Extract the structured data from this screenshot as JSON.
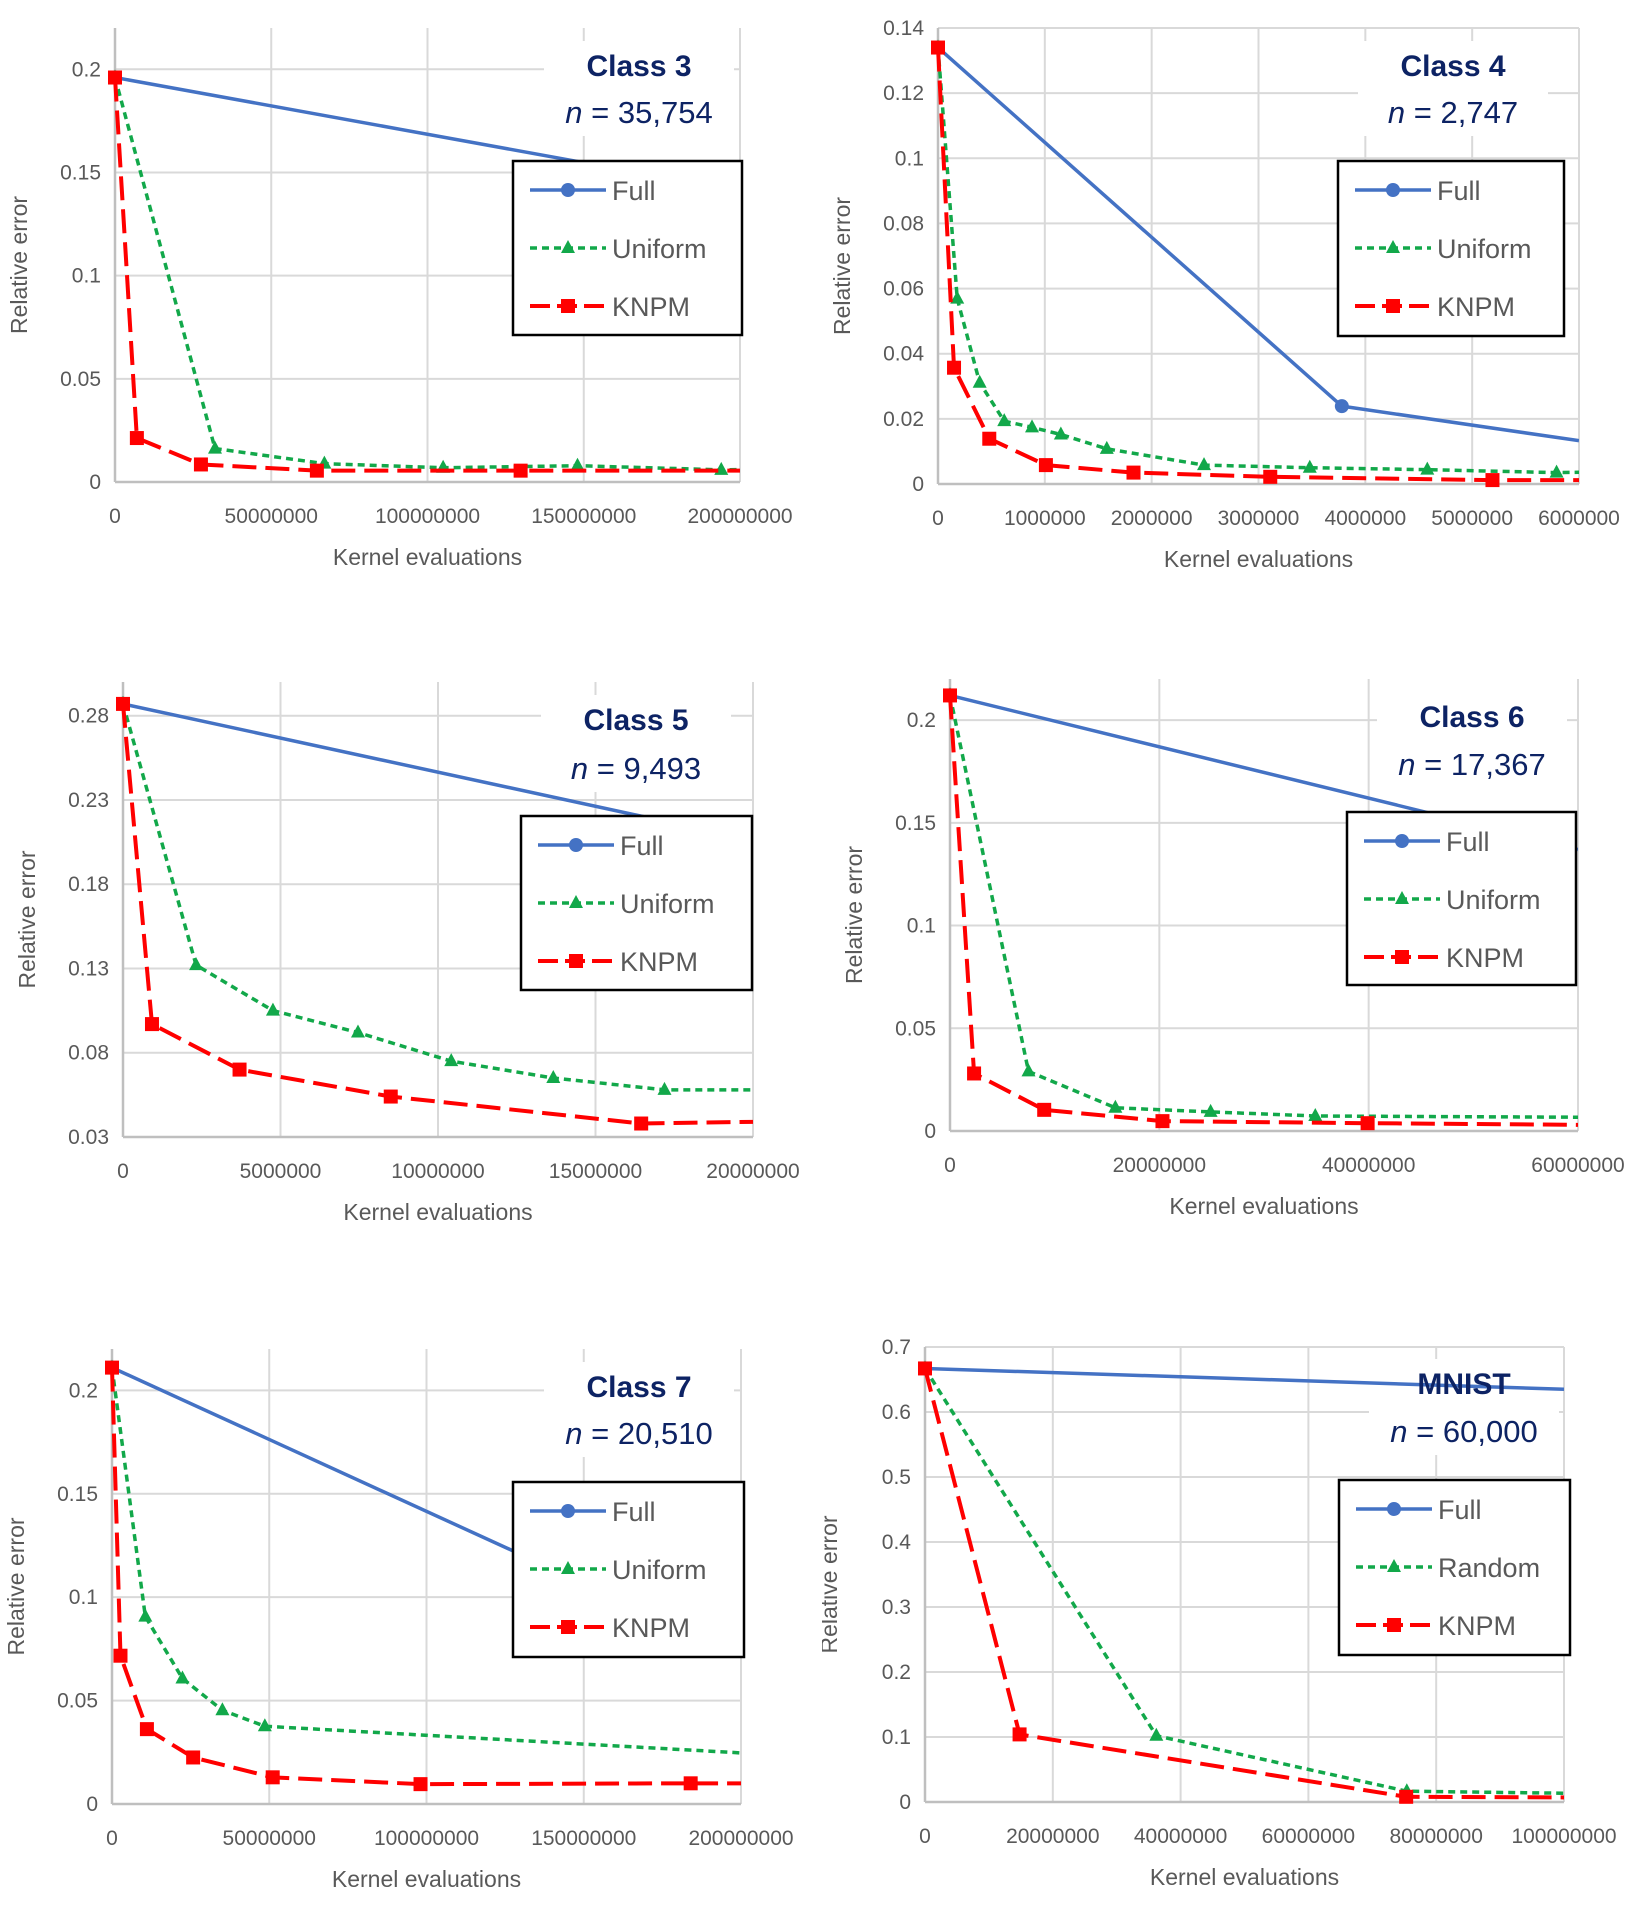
{
  "chart_data": [
    {
      "type": "line",
      "title": "Class 3",
      "annotation": "n = 35,754",
      "xlabel": "Kernel evaluations",
      "ylabel": "Relative error",
      "xlim": [
        0,
        200000000
      ],
      "ylim": [
        0,
        0.22
      ],
      "xticks": [
        {
          "v": 0,
          "label": "0"
        },
        {
          "v": 50000000,
          "label": "50000000"
        },
        {
          "v": 100000000,
          "label": "100000000"
        },
        {
          "v": 150000000,
          "label": "150000000"
        },
        {
          "v": 200000000,
          "label": "200000000"
        }
      ],
      "yticks": [
        {
          "v": 0,
          "label": "0"
        },
        {
          "v": 0.05,
          "label": "0.05"
        },
        {
          "v": 0.1,
          "label": "0.1"
        },
        {
          "v": 0.15,
          "label": "0.15"
        },
        {
          "v": 0.2,
          "label": "0.2"
        }
      ],
      "grid": true,
      "legend": "right",
      "series": [
        {
          "name": "Full",
          "color": "#4472C4",
          "values": [
            [
              0,
              0.196
            ],
            [
              200000000,
              0.141
            ]
          ]
        },
        {
          "name": "Uniform",
          "color": "#12A84A",
          "values": [
            [
              0,
              0.196
            ],
            [
              32000000,
              0.0162
            ],
            [
              67000000,
              0.0089
            ],
            [
              105000000,
              0.0069
            ],
            [
              148000000,
              0.0079
            ],
            [
              194000000,
              0.0059
            ],
            [
              200000000,
              0.006
            ]
          ]
        },
        {
          "name": "KNPM",
          "color": "#FF0000",
          "values": [
            [
              0,
              0.196
            ],
            [
              7000000,
              0.0213
            ],
            [
              27500000,
              0.0085
            ],
            [
              64600000,
              0.0055
            ],
            [
              129800000,
              0.0055
            ],
            [
              200000000,
              0.0055
            ]
          ]
        }
      ]
    },
    {
      "type": "line",
      "title": "Class 4",
      "annotation": "n = 2,747",
      "xlabel": "Kernel evaluations",
      "ylabel": "Relative error",
      "xlim": [
        0,
        6000000
      ],
      "ylim": [
        0,
        0.14
      ],
      "xticks": [
        {
          "v": 0,
          "label": "0"
        },
        {
          "v": 1000000,
          "label": "1000000"
        },
        {
          "v": 2000000,
          "label": "2000000"
        },
        {
          "v": 3000000,
          "label": "3000000"
        },
        {
          "v": 4000000,
          "label": "4000000"
        },
        {
          "v": 5000000,
          "label": "5000000"
        },
        {
          "v": 6000000,
          "label": "6000000"
        }
      ],
      "yticks": [
        {
          "v": 0,
          "label": "0"
        },
        {
          "v": 0.02,
          "label": "0.02"
        },
        {
          "v": 0.04,
          "label": "0.04"
        },
        {
          "v": 0.06,
          "label": "0.06"
        },
        {
          "v": 0.08,
          "label": "0.08"
        },
        {
          "v": 0.1,
          "label": "0.1"
        },
        {
          "v": 0.12,
          "label": "0.12"
        },
        {
          "v": 0.14,
          "label": "0.14"
        }
      ],
      "grid": true,
      "legend": "right",
      "series": [
        {
          "name": "Full",
          "color": "#4472C4",
          "values": [
            [
              0,
              0.134
            ],
            [
              3780000,
              0.0239
            ],
            [
              6000000,
              0.0133
            ]
          ]
        },
        {
          "name": "Uniform",
          "color": "#12A84A",
          "values": [
            [
              0,
              0.134
            ],
            [
              180000,
              0.0569
            ],
            [
              390000,
              0.0311
            ],
            [
              620000,
              0.0193
            ],
            [
              880000,
              0.0174
            ],
            [
              1150000,
              0.0152
            ],
            [
              1580000,
              0.0108
            ],
            [
              2490000,
              0.0058
            ],
            [
              3480000,
              0.005
            ],
            [
              4580000,
              0.0044
            ],
            [
              5790000,
              0.0035
            ],
            [
              6000000,
              0.0036
            ]
          ]
        },
        {
          "name": "KNPM",
          "color": "#FF0000",
          "values": [
            [
              0,
              0.134
            ],
            [
              150000,
              0.0357
            ],
            [
              480000,
              0.0139
            ],
            [
              1010000,
              0.0058
            ],
            [
              1830000,
              0.0035
            ],
            [
              3110000,
              0.0022
            ],
            [
              5190000,
              0.0012
            ],
            [
              6000000,
              0.0012
            ]
          ]
        }
      ]
    },
    {
      "type": "line",
      "title": "Class 5",
      "annotation": "n = 9,493",
      "xlabel": "Kernel evaluations",
      "ylabel": "Relative error",
      "xlim": [
        0,
        20000000
      ],
      "ylim": [
        0.03,
        0.3
      ],
      "xticks": [
        {
          "v": 0,
          "label": "0"
        },
        {
          "v": 5000000,
          "label": "5000000"
        },
        {
          "v": 10000000,
          "label": "10000000"
        },
        {
          "v": 15000000,
          "label": "15000000"
        },
        {
          "v": 20000000,
          "label": "20000000"
        }
      ],
      "yticks": [
        {
          "v": 0.03,
          "label": "0.03"
        },
        {
          "v": 0.08,
          "label": "0.08"
        },
        {
          "v": 0.13,
          "label": "0.13"
        },
        {
          "v": 0.18,
          "label": "0.18"
        },
        {
          "v": 0.23,
          "label": "0.23"
        },
        {
          "v": 0.28,
          "label": "0.28"
        }
      ],
      "grid": true,
      "legend": "right",
      "series": [
        {
          "name": "Full",
          "color": "#4472C4",
          "values": [
            [
              0,
              0.287
            ],
            [
              20000000,
              0.206
            ]
          ]
        },
        {
          "name": "Uniform",
          "color": "#12A84A",
          "values": [
            [
              0,
              0.287
            ],
            [
              2320000,
              0.132
            ],
            [
              4760000,
              0.105
            ],
            [
              7460000,
              0.092
            ],
            [
              10420000,
              0.075
            ],
            [
              13660000,
              0.065
            ],
            [
              17190000,
              0.058
            ],
            [
              20000000,
              0.058
            ]
          ]
        },
        {
          "name": "KNPM",
          "color": "#FF0000",
          "values": [
            [
              0,
              0.287
            ],
            [
              920000,
              0.097
            ],
            [
              3700000,
              0.07
            ],
            [
              8500000,
              0.054
            ],
            [
              16450000,
              0.038
            ],
            [
              20000000,
              0.039
            ]
          ]
        }
      ]
    },
    {
      "type": "line",
      "title": "Class 6",
      "annotation": "n = 17,367",
      "xlabel": "Kernel evaluations",
      "ylabel": "Relative error",
      "xlim": [
        0,
        60000000
      ],
      "ylim": [
        0,
        0.22
      ],
      "xticks": [
        {
          "v": 0,
          "label": "0"
        },
        {
          "v": 20000000,
          "label": "20000000"
        },
        {
          "v": 40000000,
          "label": "40000000"
        },
        {
          "v": 60000000,
          "label": "60000000"
        }
      ],
      "yticks": [
        {
          "v": 0,
          "label": "0"
        },
        {
          "v": 0.05,
          "label": "0.05"
        },
        {
          "v": 0.1,
          "label": "0.1"
        },
        {
          "v": 0.15,
          "label": "0.15"
        },
        {
          "v": 0.2,
          "label": "0.2"
        }
      ],
      "grid": true,
      "legend": "right",
      "series": [
        {
          "name": "Full",
          "color": "#4472C4",
          "values": [
            [
              0,
              0.212
            ],
            [
              60000000,
              0.137
            ]
          ]
        },
        {
          "name": "Uniform",
          "color": "#12A84A",
          "values": [
            [
              0,
              0.212
            ],
            [
              7500000,
              0.029
            ],
            [
              15800000,
              0.0113
            ],
            [
              24900000,
              0.0093
            ],
            [
              34900000,
              0.0073
            ],
            [
              60000000,
              0.0067
            ]
          ]
        },
        {
          "name": "KNPM",
          "color": "#FF0000",
          "values": [
            [
              0,
              0.212
            ],
            [
              2300000,
              0.028
            ],
            [
              9000000,
              0.0103
            ],
            [
              20300000,
              0.0048
            ],
            [
              39900000,
              0.0038
            ],
            [
              60000000,
              0.003
            ]
          ]
        }
      ]
    },
    {
      "type": "line",
      "title": "Class 7",
      "annotation": "n = 20,510",
      "xlabel": "Kernel evaluations",
      "ylabel": "Relative error",
      "xlim": [
        0,
        200000000
      ],
      "ylim": [
        0,
        0.22
      ],
      "xticks": [
        {
          "v": 0,
          "label": "0"
        },
        {
          "v": 50000000,
          "label": "50000000"
        },
        {
          "v": 100000000,
          "label": "100000000"
        },
        {
          "v": 150000000,
          "label": "150000000"
        },
        {
          "v": 200000000,
          "label": "200000000"
        }
      ],
      "yticks": [
        {
          "v": 0,
          "label": "0"
        },
        {
          "v": 0.05,
          "label": "0.05"
        },
        {
          "v": 0.1,
          "label": "0.1"
        },
        {
          "v": 0.15,
          "label": "0.15"
        },
        {
          "v": 0.2,
          "label": "0.2"
        }
      ],
      "grid": true,
      "legend": "right",
      "series": [
        {
          "name": "Full",
          "color": "#4472C4",
          "values": [
            [
              0,
              0.211
            ],
            [
              200000000,
              0.072
            ]
          ]
        },
        {
          "name": "Uniform",
          "color": "#12A84A",
          "values": [
            [
              0,
              0.211
            ],
            [
              10600000,
              0.0906
            ],
            [
              22400000,
              0.0607
            ],
            [
              35100000,
              0.0453
            ],
            [
              48600000,
              0.0376
            ],
            [
              200000000,
              0.0247
            ]
          ]
        },
        {
          "name": "KNPM",
          "color": "#FF0000",
          "values": [
            [
              0,
              0.211
            ],
            [
              2700000,
              0.0717
            ],
            [
              11100000,
              0.0362
            ],
            [
              25800000,
              0.0225
            ],
            [
              51100000,
              0.0129
            ],
            [
              98100000,
              0.0096
            ],
            [
              184000000,
              0.01
            ],
            [
              200000000,
              0.01
            ]
          ]
        }
      ]
    },
    {
      "type": "line",
      "title": "MNIST",
      "annotation": "n = 60,000",
      "xlabel": "Kernel evaluations",
      "ylabel": "Relative error",
      "xlim": [
        0,
        100000000
      ],
      "ylim": [
        0,
        0.7
      ],
      "xticks": [
        {
          "v": 0,
          "label": "0"
        },
        {
          "v": 20000000,
          "label": "20000000"
        },
        {
          "v": 40000000,
          "label": "40000000"
        },
        {
          "v": 60000000,
          "label": "60000000"
        },
        {
          "v": 80000000,
          "label": "80000000"
        },
        {
          "v": 100000000,
          "label": "100000000"
        }
      ],
      "yticks": [
        {
          "v": 0,
          "label": "0"
        },
        {
          "v": 0.1,
          "label": "0.1"
        },
        {
          "v": 0.2,
          "label": "0.2"
        },
        {
          "v": 0.3,
          "label": "0.3"
        },
        {
          "v": 0.4,
          "label": "0.4"
        },
        {
          "v": 0.5,
          "label": "0.5"
        },
        {
          "v": 0.6,
          "label": "0.6"
        },
        {
          "v": 0.7,
          "label": "0.7"
        }
      ],
      "grid": true,
      "legend": "right",
      "series": [
        {
          "name": "Full",
          "color": "#4472C4",
          "values": [
            [
              0,
              0.667
            ],
            [
              100000000,
              0.635
            ]
          ]
        },
        {
          "name": "Random",
          "color": "#12A84A",
          "values": [
            [
              0,
              0.667
            ],
            [
              36200000,
              0.102
            ],
            [
              75400000,
              0.0166
            ],
            [
              100000000,
              0.0135
            ]
          ]
        },
        {
          "name": "KNPM",
          "color": "#FF0000",
          "values": [
            [
              0,
              0.667
            ],
            [
              14800000,
              0.104
            ],
            [
              75300000,
              0.008
            ],
            [
              100000000,
              0.007
            ]
          ]
        }
      ]
    }
  ],
  "colors": {
    "title": "#0d2364",
    "grid": "#d9d9d9",
    "axis_text": "#595959"
  }
}
